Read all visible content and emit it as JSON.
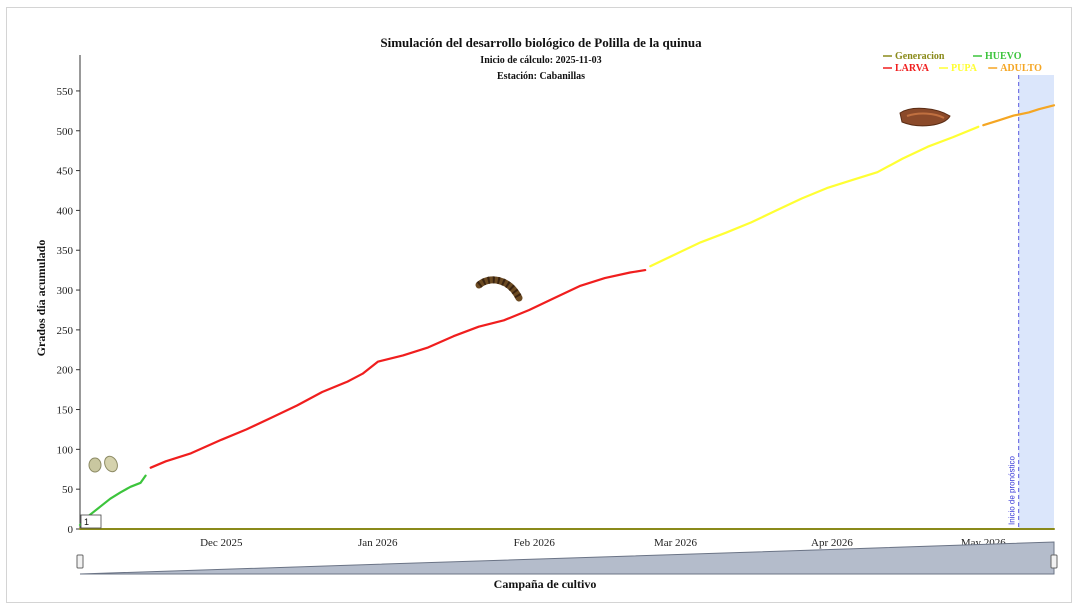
{
  "chart_data": {
    "type": "line",
    "title": "Simulación del desarrollo biológico de Polilla de la quinua",
    "subtitle_1": "Inicio de cálculo: 2025-11-03",
    "subtitle_2": "Estación: Cabanillas",
    "xlabel": "Campaña de cultivo",
    "ylabel": "Grados día acumulado",
    "ylim": [
      0,
      570
    ],
    "xlim": [
      "2025-11-03",
      "2026-05-15"
    ],
    "y_ticks": [
      0,
      50,
      100,
      150,
      200,
      250,
      300,
      350,
      400,
      450,
      500,
      550
    ],
    "x_ticks": [
      {
        "date": "2025-12-01",
        "label": "Dec 2025"
      },
      {
        "date": "2026-01-01",
        "label": "Jan 2026"
      },
      {
        "date": "2026-02-01",
        "label": "Feb 2026"
      },
      {
        "date": "2026-03-01",
        "label": "Mar 2026"
      },
      {
        "date": "2026-04-01",
        "label": "Apr 2026"
      },
      {
        "date": "2026-05-01",
        "label": "May 2026"
      }
    ],
    "grid": false,
    "legend_position": "top-right",
    "legend": [
      {
        "name": "Generacion",
        "color": "#8a8a1a"
      },
      {
        "name": "HUEVO",
        "color": "#3cc43c"
      },
      {
        "name": "LARVA",
        "color": "#f01e1e"
      },
      {
        "name": "PUPA",
        "color": "#ffff33"
      },
      {
        "name": "ADULTO",
        "color": "#f5a623"
      }
    ],
    "generation_value": "1",
    "forecast_start": "2026-05-08",
    "forecast_label": "Inicio de pronóstico",
    "series": [
      {
        "name": "Generacion",
        "color": "#8a8a1a",
        "x": [
          "2025-11-03",
          "2026-05-15"
        ],
        "y": [
          0,
          0
        ]
      },
      {
        "name": "HUEVO",
        "color": "#3cc43c",
        "x": [
          "2025-11-03",
          "2025-11-05",
          "2025-11-07",
          "2025-11-09",
          "2025-11-11",
          "2025-11-13",
          "2025-11-15",
          "2025-11-16"
        ],
        "y": [
          5,
          18,
          28,
          38,
          46,
          53,
          58,
          67
        ]
      },
      {
        "name": "LARVA",
        "color": "#f01e1e",
        "x": [
          "2025-11-17",
          "2025-11-20",
          "2025-11-25",
          "2025-12-01",
          "2025-12-06",
          "2025-12-11",
          "2025-12-16",
          "2025-12-21",
          "2025-12-26",
          "2025-12-29",
          "2026-01-01",
          "2026-01-06",
          "2026-01-11",
          "2026-01-16",
          "2026-01-21",
          "2026-01-26",
          "2026-01-31",
          "2026-02-05",
          "2026-02-10",
          "2026-02-15",
          "2026-02-20",
          "2026-02-23"
        ],
        "y": [
          77,
          85,
          95,
          112,
          125,
          140,
          155,
          172,
          185,
          195,
          210,
          218,
          228,
          242,
          254,
          262,
          275,
          290,
          305,
          315,
          322,
          325
        ]
      },
      {
        "name": "PUPA",
        "color": "#ffff33",
        "x": [
          "2026-02-24",
          "2026-03-01",
          "2026-03-06",
          "2026-03-11",
          "2026-03-16",
          "2026-03-21",
          "2026-03-26",
          "2026-03-31",
          "2026-04-05",
          "2026-04-10",
          "2026-04-15",
          "2026-04-20",
          "2026-04-25",
          "2026-04-30"
        ],
        "y": [
          330,
          345,
          360,
          372,
          385,
          400,
          415,
          428,
          438,
          448,
          465,
          480,
          492,
          505
        ]
      },
      {
        "name": "ADULTO",
        "color": "#f5a623",
        "x": [
          "2026-05-01",
          "2026-05-04",
          "2026-05-07",
          "2026-05-10",
          "2026-05-12",
          "2026-05-15"
        ],
        "y": [
          507,
          513,
          519,
          523,
          527,
          532
        ]
      }
    ]
  }
}
